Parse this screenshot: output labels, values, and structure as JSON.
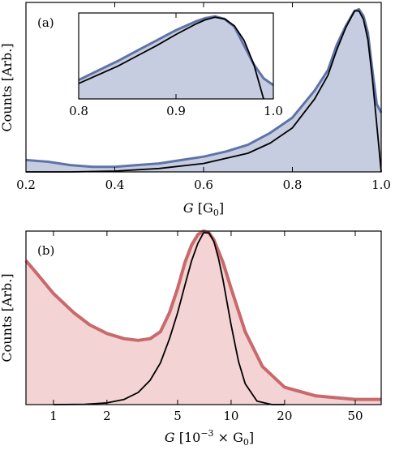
{
  "chart_data": [
    {
      "id": "a",
      "type": "area",
      "panel_label": "(a)",
      "xlabel_italic": "G",
      "xlabel_rest": " [G",
      "xlabel_sub": "0",
      "xlabel_end": "]",
      "ylabel": "Counts [Arb.]",
      "xlim": [
        0.2,
        1.0
      ],
      "ylim": [
        0,
        1.0
      ],
      "xticks": [
        0.2,
        0.4,
        0.6,
        0.8,
        1.0
      ],
      "xtick_labels": [
        "0.2",
        "0.4",
        "0.6",
        "0.8",
        "1.0"
      ],
      "colors": {
        "fill": "#c7cde0",
        "data_line": "#5f73a8",
        "fit": "#000000"
      },
      "histogram": {
        "x": [
          0.2,
          0.25,
          0.3,
          0.35,
          0.4,
          0.45,
          0.5,
          0.55,
          0.6,
          0.65,
          0.7,
          0.75,
          0.8,
          0.85,
          0.88,
          0.9,
          0.92,
          0.94,
          0.95,
          0.96,
          0.97,
          0.98,
          0.99,
          1.0
        ],
        "y": [
          0.07,
          0.06,
          0.04,
          0.03,
          0.03,
          0.04,
          0.05,
          0.07,
          0.09,
          0.12,
          0.16,
          0.23,
          0.32,
          0.48,
          0.6,
          0.75,
          0.86,
          0.95,
          0.96,
          0.92,
          0.82,
          0.6,
          0.4,
          0.35
        ]
      },
      "fit": {
        "x": [
          0.2,
          0.3,
          0.4,
          0.5,
          0.6,
          0.7,
          0.75,
          0.8,
          0.85,
          0.88,
          0.9,
          0.92,
          0.94,
          0.95,
          0.96,
          0.97,
          0.98,
          0.99,
          1.0
        ],
        "y": [
          0.0,
          0.0,
          0.005,
          0.02,
          0.05,
          0.11,
          0.17,
          0.26,
          0.43,
          0.57,
          0.72,
          0.85,
          0.95,
          0.95,
          0.9,
          0.78,
          0.55,
          0.28,
          0.0
        ]
      },
      "inset": {
        "xlim": [
          0.8,
          1.0
        ],
        "ylim": [
          0,
          1.0
        ],
        "xticks": [
          0.8,
          0.9,
          1.0
        ],
        "xtick_labels": [
          "0.8",
          "0.9",
          "1.0"
        ],
        "histogram": {
          "x": [
            0.8,
            0.82,
            0.84,
            0.86,
            0.88,
            0.9,
            0.92,
            0.93,
            0.94,
            0.95,
            0.96,
            0.97,
            0.98,
            0.99,
            1.0
          ],
          "y": [
            0.22,
            0.33,
            0.44,
            0.56,
            0.68,
            0.8,
            0.9,
            0.94,
            0.96,
            0.93,
            0.84,
            0.62,
            0.4,
            0.24,
            0.16
          ]
        },
        "fit": {
          "x": [
            0.8,
            0.82,
            0.84,
            0.86,
            0.88,
            0.9,
            0.92,
            0.93,
            0.94,
            0.95,
            0.96,
            0.97,
            0.98,
            0.985,
            0.99
          ],
          "y": [
            0.18,
            0.28,
            0.38,
            0.5,
            0.62,
            0.75,
            0.87,
            0.92,
            0.95,
            0.93,
            0.85,
            0.68,
            0.4,
            0.2,
            0.0
          ]
        }
      }
    },
    {
      "id": "b",
      "type": "area",
      "panel_label": "(b)",
      "xlabel_italic": "G",
      "xlabel_rest": " [10",
      "xlabel_sup": "−3",
      "xlabel_mid": " × G",
      "xlabel_sub": "0",
      "xlabel_end": "]",
      "ylabel": "Counts [Arb.]",
      "xscale": "log",
      "xlim": [
        0.7,
        70
      ],
      "ylim": [
        0,
        1.0
      ],
      "xticks": [
        1,
        2,
        5,
        10,
        20,
        50
      ],
      "xtick_labels": [
        "1",
        "2",
        "5",
        "10",
        "20",
        "50"
      ],
      "colors": {
        "fill": "#f3d3d3",
        "data_line": "#c9696c",
        "fit": "#000000"
      },
      "histogram": {
        "x": [
          0.7,
          0.8,
          1.0,
          1.3,
          1.6,
          2.0,
          2.5,
          3.0,
          3.5,
          4.0,
          4.5,
          5.0,
          5.5,
          6.0,
          6.5,
          7.0,
          7.5,
          8.0,
          9.0,
          10,
          12,
          15,
          20,
          30,
          50,
          70
        ],
        "y": [
          0.83,
          0.76,
          0.64,
          0.53,
          0.46,
          0.41,
          0.38,
          0.37,
          0.38,
          0.42,
          0.53,
          0.67,
          0.82,
          0.92,
          0.98,
          1.0,
          0.99,
          0.95,
          0.82,
          0.67,
          0.42,
          0.22,
          0.1,
          0.05,
          0.03,
          0.03
        ]
      },
      "fit": {
        "x": [
          1.0,
          1.5,
          2.0,
          2.5,
          3.0,
          3.5,
          4.0,
          4.5,
          5.0,
          5.5,
          6.0,
          6.5,
          7.0,
          7.5,
          8.0,
          8.5,
          9.0,
          10,
          11,
          12,
          14,
          17,
          20
        ],
        "y": [
          0.0,
          0.002,
          0.01,
          0.03,
          0.07,
          0.14,
          0.24,
          0.38,
          0.53,
          0.69,
          0.83,
          0.93,
          0.99,
          0.99,
          0.94,
          0.84,
          0.72,
          0.46,
          0.25,
          0.12,
          0.02,
          0.0,
          0.0
        ]
      }
    }
  ]
}
